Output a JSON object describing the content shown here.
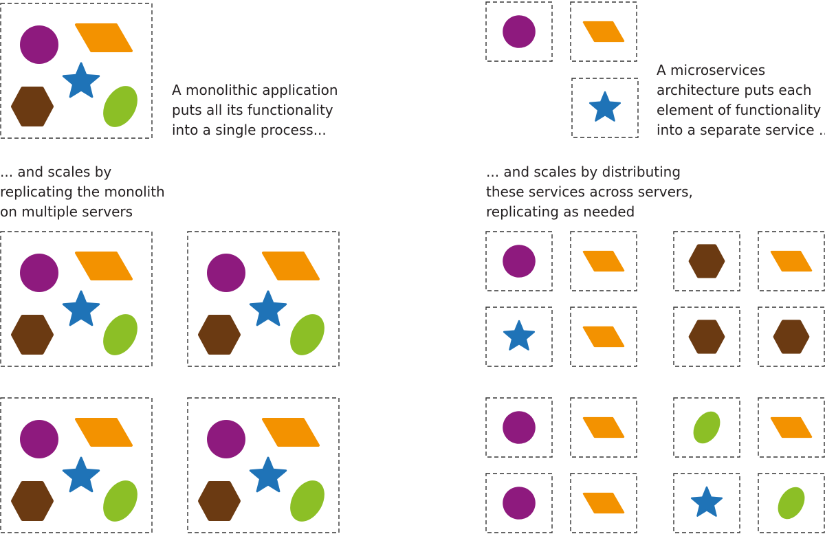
{
  "captions": {
    "monolith": [
      "A monolithic application",
      "puts all its functionality",
      "into a single process..."
    ],
    "monolith_scale": [
      "... and scales by",
      "replicating the monolith",
      "on multiple servers"
    ],
    "microservices": [
      "A microservices",
      "architecture puts each",
      "element of functionality",
      "into a separate service ..."
    ],
    "microservices_scale": [
      "... and scales by distributing",
      "these services across servers,",
      "replicating as needed"
    ]
  },
  "colors": {
    "circle": "#8e1a7e",
    "parallelogram": "#f39200",
    "star": "#1f73b7",
    "hexagon": "#6b3a12",
    "ellipse": "#8cbf26",
    "box_border": "#333333"
  },
  "monolith_functions": [
    "circle",
    "parallelogram",
    "star",
    "hexagon",
    "ellipse"
  ],
  "microservice_single_boxes": [
    "circle",
    "parallelogram",
    "star"
  ],
  "microservice_server_grid": [
    [
      "circle",
      "parallelogram",
      "hexagon",
      "parallelogram"
    ],
    [
      "star",
      "parallelogram",
      "hexagon",
      "hexagon"
    ],
    [
      "circle",
      "parallelogram",
      "ellipse",
      "parallelogram"
    ],
    [
      "circle",
      "parallelogram",
      "star",
      "ellipse"
    ]
  ]
}
